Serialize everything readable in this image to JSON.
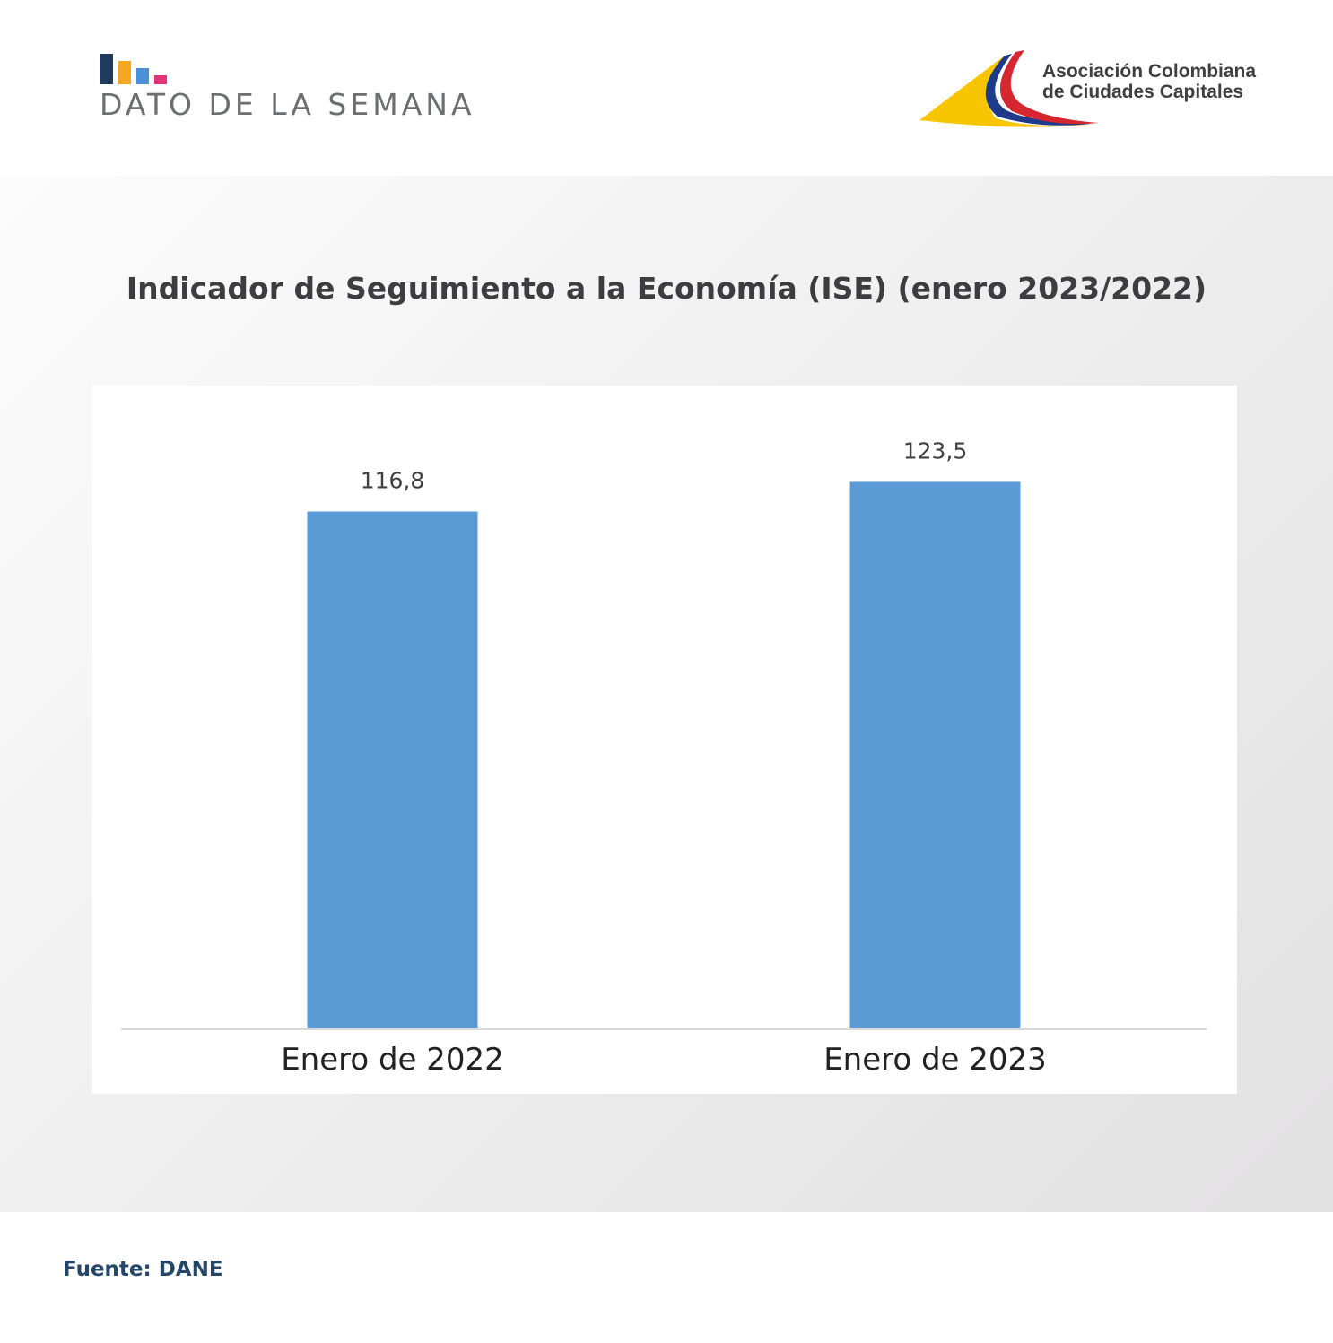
{
  "header": {
    "section_label": "DATO DE LA SEMANA",
    "brand_mark_colors": [
      "#1f3a5f",
      "#f5a623",
      "#4a90d9",
      "#e6337a"
    ],
    "org_name_line1": "Asociación Colombiana",
    "org_name_line2": "de Ciudades Capitales",
    "org_logo_colors": [
      "#f7c600",
      "#1e3a8a",
      "#d6262f"
    ]
  },
  "chart_data": {
    "type": "bar",
    "title": "Indicador de Seguimiento a la Economía (ISE) (enero 2023/2022)",
    "categories": [
      "Enero de 2022",
      "Enero de 2023"
    ],
    "values": [
      116.8,
      123.5
    ],
    "value_labels": [
      "116,8",
      "123,5"
    ],
    "xlabel": "",
    "ylabel": "",
    "ylim": [
      0,
      140
    ],
    "grid": false,
    "legend": "none",
    "bar_color": "#5b9bd5"
  },
  "footer": {
    "source": "Fuente: DANE"
  }
}
